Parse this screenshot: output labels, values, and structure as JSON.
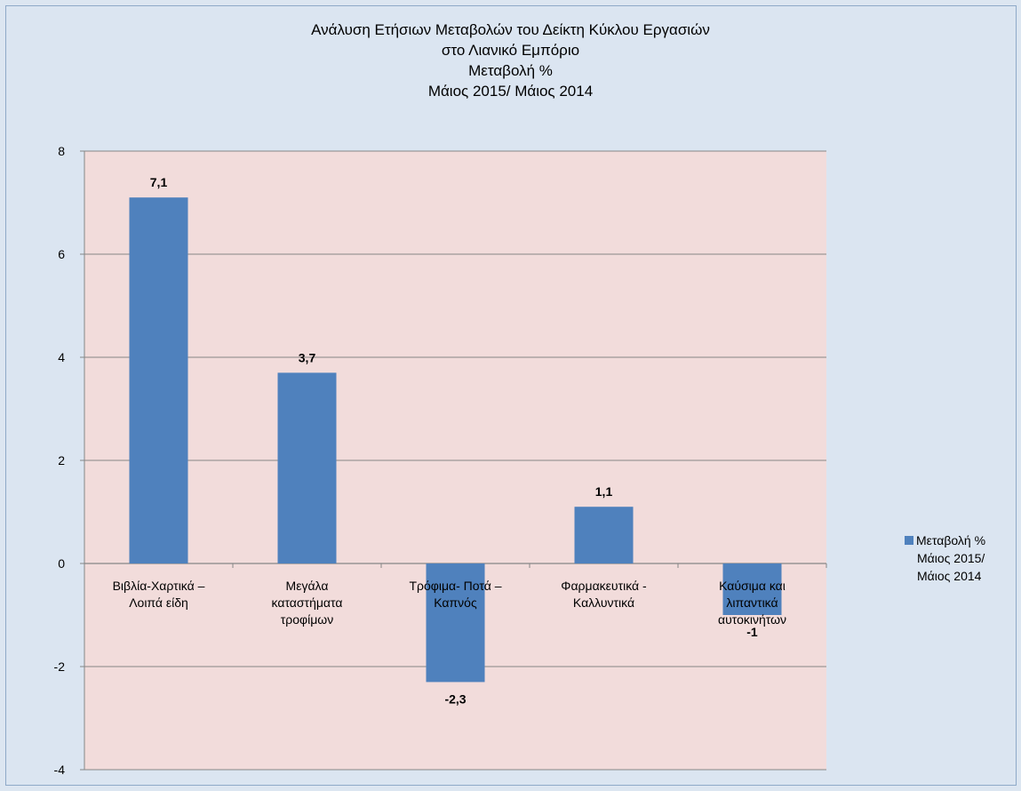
{
  "chart_data": {
    "type": "bar",
    "title_lines": [
      "Ανάλυση Ετήσιων Μεταβολών του Δείκτη Κύκλου Εργασιών",
      "στο Λιανικό Εμπόριο",
      "Μεταβολή %",
      "Μάιος  2015/ Μάιος  2014"
    ],
    "categories": [
      [
        "Βιβλία-Χαρτικά –",
        "Λοιπά είδη"
      ],
      [
        "Μεγάλα",
        "καταστήματα",
        "τροφίμων"
      ],
      [
        "Τρόφιμα- Ποτά –",
        "Καπνός"
      ],
      [
        "Φαρμακευτικά -",
        "Καλλυντικά"
      ],
      [
        "Καύσιμα και",
        "λιπαντικά",
        "αυτοκινήτων"
      ]
    ],
    "series": [
      {
        "name_lines": [
          "Μεταβολή %",
          "Μάιος  2015/",
          "Μάιος  2014"
        ],
        "values": [
          7.1,
          3.7,
          -2.3,
          1.1,
          -1.0
        ],
        "labels": [
          "7,1",
          "3,7",
          "-2,3",
          "1,1",
          "-1"
        ]
      }
    ],
    "y_ticks": [
      "8",
      "6",
      "4",
      "2",
      "0",
      "-2",
      "-4"
    ],
    "ylim": [
      -4,
      8
    ],
    "grid": true,
    "legend_position": "right",
    "colors": {
      "bar": "#4f81bd",
      "plot_background": "#f2dcdb",
      "chart_background": "#dce6f1",
      "gridline": "#868686"
    }
  }
}
